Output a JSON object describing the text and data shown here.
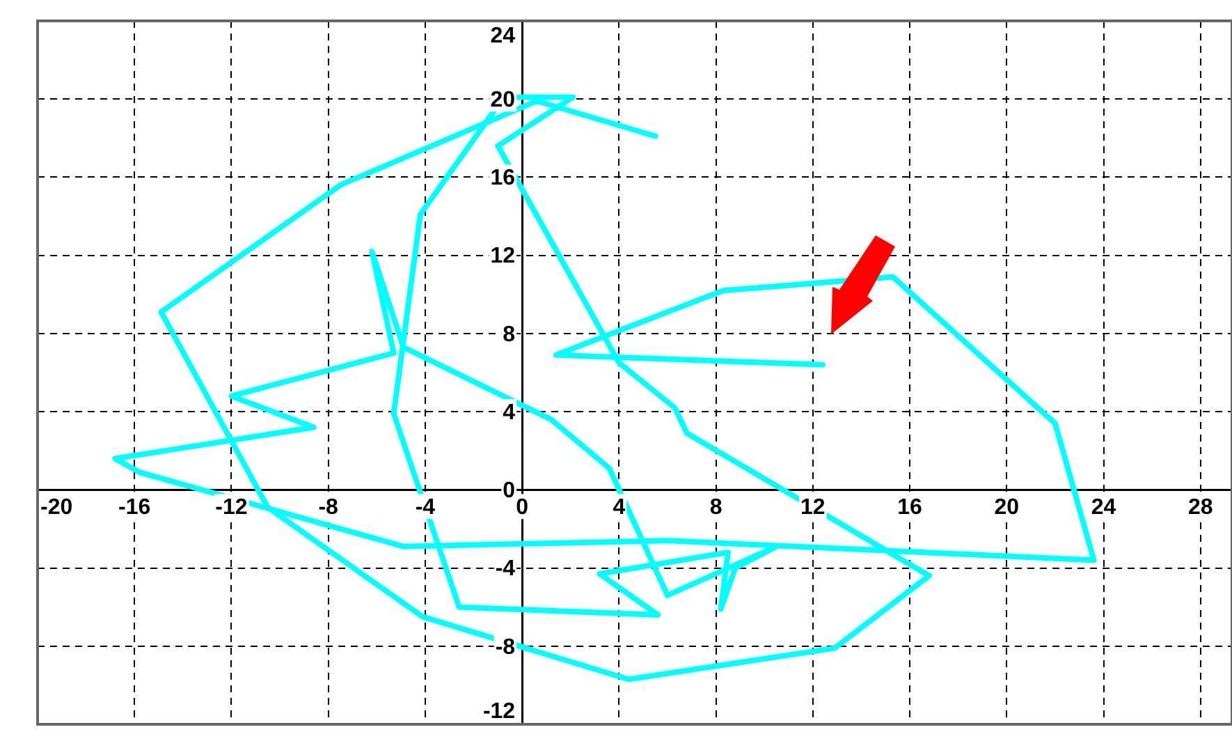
{
  "chart_data": {
    "type": "line",
    "series": [
      {
        "color": "#00ffff",
        "x": [
          12.4,
          1.4,
          8.3,
          15.3,
          22.0,
          23.6,
          6.0,
          -4.9,
          -15.8,
          -16.8,
          -8.6,
          -12.0,
          -5.3,
          -6.2,
          -4.9,
          1.2,
          3.6,
          6.0,
          10.5,
          8.8,
          8.2,
          8.5,
          3.2,
          5.6,
          -2.6,
          -5.3,
          -4.2,
          -0.75,
          2.1,
          -1.0,
          4.0,
          6.3,
          6.8,
          16.8,
          12.9,
          4.4,
          -4.1,
          -10.5,
          -14.9,
          -7.5,
          0.6,
          5.5
        ],
        "values": [
          6.4,
          6.9,
          10.2,
          10.9,
          3.4,
          -3.6,
          -2.6,
          -2.9,
          0.9,
          1.6,
          3.2,
          4.8,
          7.0,
          12.2,
          7.3,
          3.6,
          1.1,
          -5.4,
          -2.9,
          -4.0,
          -6.1,
          -3.2,
          -4.3,
          -6.4,
          -6.0,
          3.9,
          14.1,
          20.1,
          20.1,
          17.6,
          6.5,
          4.2,
          2.9,
          -4.4,
          -8.1,
          -9.7,
          -6.5,
          -0.9,
          9.1,
          15.6,
          19.9,
          18.1
        ]
      }
    ],
    "xlim": [
      -20,
      29.3
    ],
    "ylim": [
      -12,
      24
    ],
    "xticks": [
      -20,
      -16,
      -12,
      -8,
      -4,
      0,
      4,
      8,
      12,
      16,
      20,
      24,
      28
    ],
    "yticks": [
      -12,
      -8,
      -4,
      0,
      4,
      8,
      12,
      16,
      20,
      24
    ],
    "grid": true,
    "marker": "none",
    "legend": false
  }
}
